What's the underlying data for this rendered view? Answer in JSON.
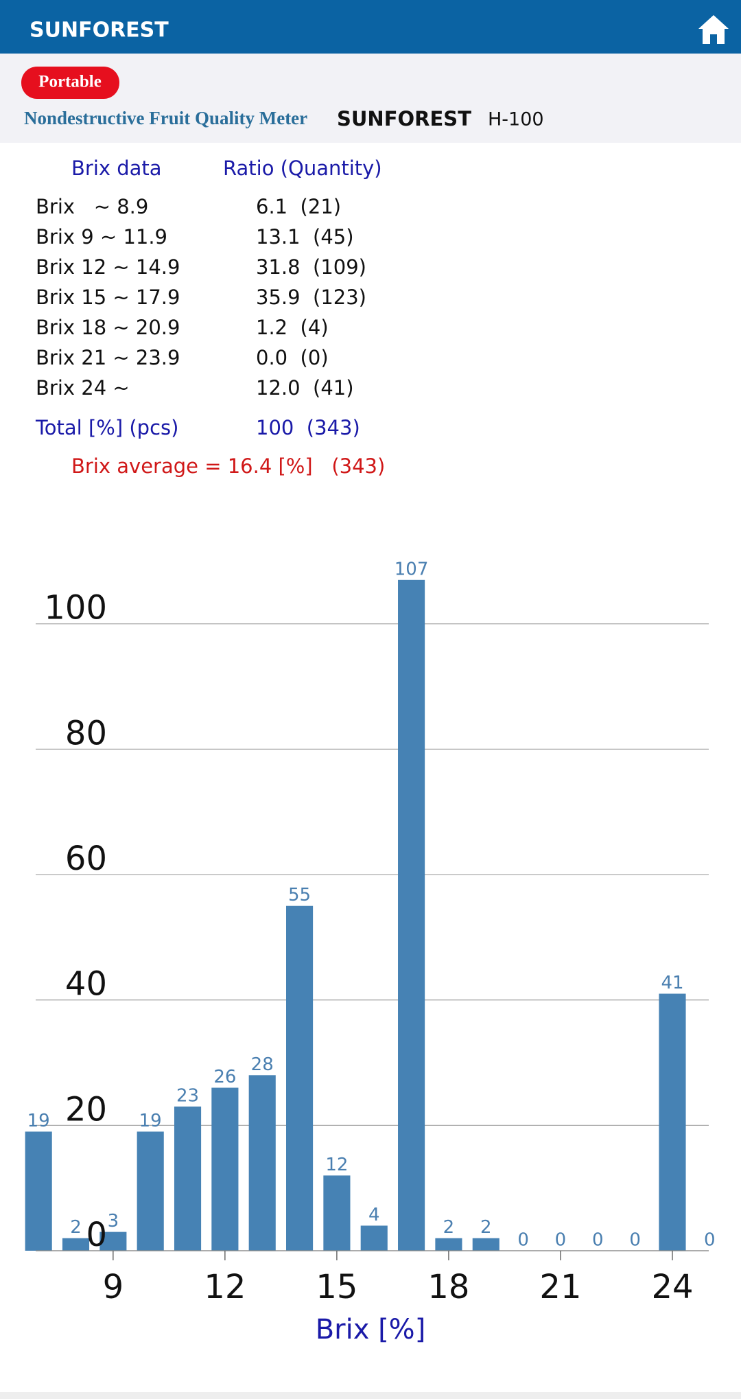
{
  "header": {
    "logo": "SUNFOREST"
  },
  "banner": {
    "badge": "Portable",
    "title": "Nondestructive Fruit Quality Meter",
    "brand": "SUNFOREST",
    "model": "H-100"
  },
  "table": {
    "headers": [
      "Brix data",
      "Ratio (Quantity)"
    ],
    "rows": [
      [
        "Brix   ~ 8.9",
        "6.1  (21)"
      ],
      [
        "Brix 9 ~ 11.9",
        "13.1  (45)"
      ],
      [
        "Brix 12 ~ 14.9",
        "31.8  (109)"
      ],
      [
        "Brix 15 ~ 17.9",
        "35.9  (123)"
      ],
      [
        "Brix 18 ~ 20.9",
        "1.2  (4)"
      ],
      [
        "Brix 21 ~ 23.9",
        "0.0  (0)"
      ],
      [
        "Brix 24 ~",
        "12.0  (41)"
      ]
    ],
    "total": [
      "Total [%] (pcs)",
      "100  (343)"
    ],
    "average": "Brix average = 16.4 [%]   (343)"
  },
  "chart_data": {
    "type": "bar",
    "x": [
      7,
      8,
      9,
      10,
      11,
      12,
      13,
      14,
      15,
      16,
      17,
      18,
      19,
      20,
      21,
      22,
      23,
      24,
      25
    ],
    "values": [
      19,
      2,
      3,
      19,
      23,
      26,
      28,
      55,
      12,
      4,
      107,
      2,
      2,
      0,
      0,
      0,
      0,
      41,
      0
    ],
    "color": "#4682b4",
    "xlim": [
      6.5,
      25.5
    ],
    "ylim": [
      0,
      110
    ],
    "xticks": [
      9,
      12,
      15,
      18,
      21,
      24
    ],
    "yticks": [
      0,
      20,
      40,
      60,
      80,
      100
    ],
    "xlabel": "Brix [%]",
    "grid": true
  }
}
